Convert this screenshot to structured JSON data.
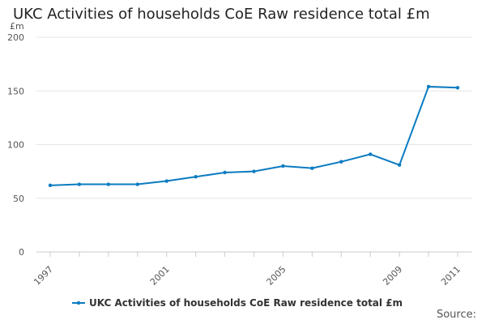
{
  "chart_data": {
    "type": "line",
    "title": "UKC Activities of households CoE Raw residence total £m",
    "ylabel": "£m",
    "xlabel": "",
    "ylim": [
      0,
      200
    ],
    "yticks": [
      0,
      50,
      100,
      150,
      200
    ],
    "xlim": [
      1997,
      2011
    ],
    "xticks": [
      1997,
      2001,
      2005,
      2009,
      2011
    ],
    "grid": true,
    "legend_position": "bottom",
    "x": [
      1997,
      1998,
      1999,
      2000,
      2001,
      2002,
      2003,
      2004,
      2005,
      2006,
      2007,
      2008,
      2009,
      2010,
      2011
    ],
    "series": [
      {
        "name": "UKC Activities of households CoE Raw residence total £m",
        "color": "#0b7bc1",
        "values": [
          62,
          63,
          63,
          63,
          66,
          70,
          74,
          75,
          80,
          78,
          84,
          91,
          81,
          154,
          153
        ]
      }
    ]
  },
  "source_label": "Source:"
}
